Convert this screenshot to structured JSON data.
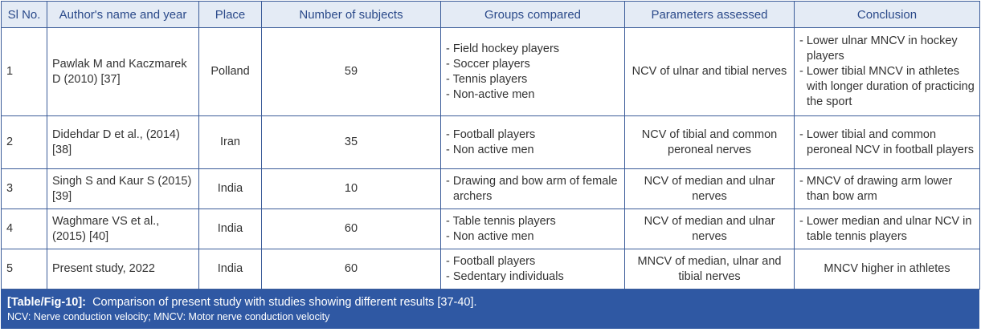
{
  "headers": [
    "Sl No.",
    "Author's name and year",
    "Place",
    "Number of subjects",
    "Groups compared",
    "Parameters assessed",
    "Conclusion"
  ],
  "rows": [
    {
      "sl": "1",
      "author": "Pawlak M and Kaczmarek D (2010) [37]",
      "place": "Polland",
      "n": "59",
      "groups": [
        "Field hockey players",
        "Soccer players",
        "Tennis players",
        "Non-active men"
      ],
      "params": "NCV of ulnar and tibial nerves",
      "conclusion": [
        "Lower ulnar MNCV in hockey players",
        "Lower tibial MNCV in athletes with longer duration of practicing the sport"
      ]
    },
    {
      "sl": "2",
      "author": "Didehdar D et al., (2014) [38]",
      "place": "Iran",
      "n": "35",
      "groups": [
        "Football players",
        "Non active men"
      ],
      "params": "NCV of tibial and common peroneal nerves",
      "conclusion": [
        "Lower tibial and common peroneal NCV in football players"
      ]
    },
    {
      "sl": "3",
      "author": "Singh S and Kaur S (2015) [39]",
      "place": "India",
      "n": "10",
      "groups": [
        "Drawing and bow arm of female archers"
      ],
      "params": "NCV of median and ulnar nerves",
      "conclusion": [
        "MNCV of drawing arm lower than bow arm"
      ]
    },
    {
      "sl": "4",
      "author": "Waghmare VS et al., (2015) [40]",
      "place": "India",
      "n": "60",
      "groups": [
        "Table tennis players",
        "Non active men"
      ],
      "params": "NCV of median and ulnar nerves",
      "conclusion": [
        "Lower median and ulnar NCV in table tennis players"
      ]
    },
    {
      "sl": "5",
      "author": "Present study, 2022",
      "place": "India",
      "n": "60",
      "groups": [
        "Football players",
        "Sedentary individuals"
      ],
      "params": "MNCV of median, ulnar and tibial nerves",
      "conclusion_text": "MNCV higher in athletes"
    }
  ],
  "caption": {
    "label": "[Table/Fig-10]:",
    "text": "Comparison of present study with studies showing different results [37-40].",
    "note": "NCV: Nerve conduction velocity; MNCV: Motor nerve conduction velocity"
  }
}
